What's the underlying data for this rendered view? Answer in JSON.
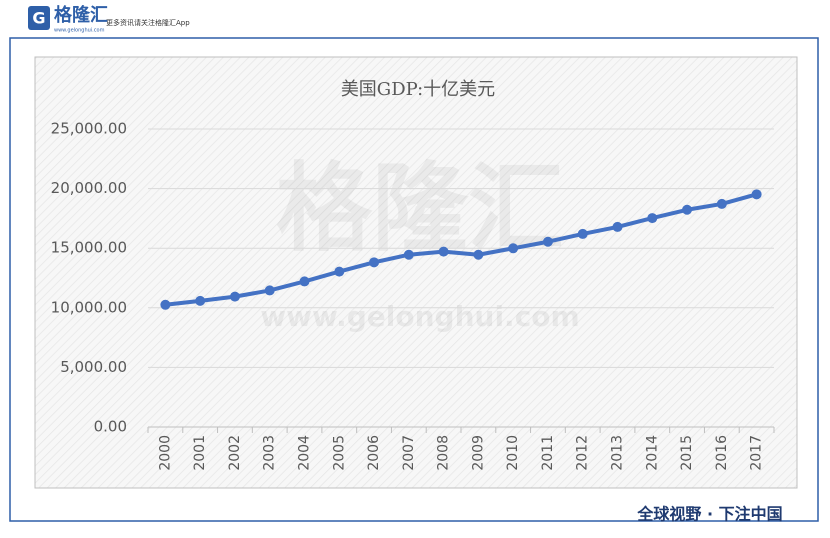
{
  "branding": {
    "logo": "格隆汇",
    "logo_url": "www.gelonghui.com",
    "tagline": "更多资讯请关注格隆汇App",
    "watermark": "格隆汇",
    "watermark_url": "www.gelonghui.com",
    "footer": "全球视野 · 下注中国"
  },
  "chart_data": {
    "type": "line",
    "title": "美国GDP:十亿美元",
    "categories": [
      "2000",
      "2001",
      "2002",
      "2003",
      "2004",
      "2005",
      "2006",
      "2007",
      "2008",
      "2009",
      "2010",
      "2011",
      "2012",
      "2013",
      "2014",
      "2015",
      "2016",
      "2017"
    ],
    "series": [
      {
        "name": "美国GDP",
        "color": "#4472c4",
        "values": [
          10252,
          10582,
          10936,
          11458,
          12214,
          13037,
          13815,
          14452,
          14713,
          14449,
          14992,
          15543,
          16197,
          16785,
          17527,
          18225,
          18715,
          19519
        ]
      }
    ],
    "ylim": [
      0,
      25000
    ],
    "yticks": [
      {
        "value": 0,
        "label": "0.00"
      },
      {
        "value": 5000,
        "label": "5,000.00"
      },
      {
        "value": 10000,
        "label": "10,000.00"
      },
      {
        "value": 15000,
        "label": "15,000.00"
      },
      {
        "value": 20000,
        "label": "20,000.00"
      },
      {
        "value": 25000,
        "label": "25,000.00"
      }
    ],
    "grid": true
  }
}
